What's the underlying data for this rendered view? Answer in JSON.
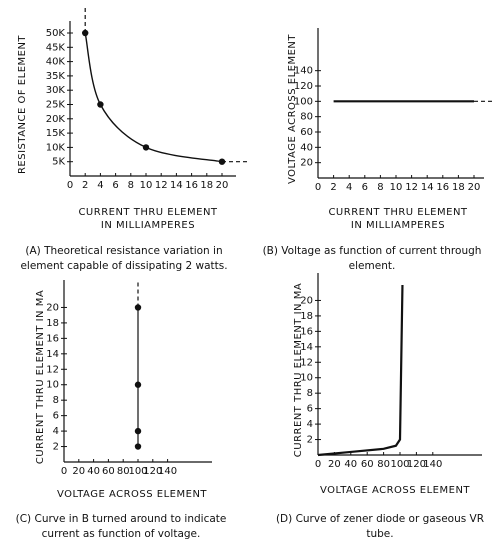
{
  "chart_data": [
    {
      "type": "line",
      "ylabel": "RESISTANCE OF ELEMENT",
      "xlabel": [
        "CURRENT THRU ELEMENT",
        "IN MILLIAMPERES"
      ],
      "caption": "(A) Theoretical resistance variation in element capable of dissipating 2 watts.",
      "x": [
        2,
        4,
        10,
        20
      ],
      "values": [
        50000,
        25000,
        10000,
        5000
      ],
      "color": "#111111",
      "markers": true,
      "smooth": true,
      "xlim": [
        0,
        20
      ],
      "ylim": [
        0,
        50000
      ],
      "xticks": [
        0,
        2,
        4,
        6,
        8,
        10,
        12,
        14,
        16,
        18,
        20
      ],
      "yticks": [
        {
          "value": 5000,
          "label": "5K"
        },
        {
          "value": 10000,
          "label": "10K"
        },
        {
          "value": 15000,
          "label": "15K"
        },
        {
          "value": 20000,
          "label": "20K"
        },
        {
          "value": 25000,
          "label": "25K"
        },
        {
          "value": 30000,
          "label": "30K"
        },
        {
          "value": 35000,
          "label": "35K"
        },
        {
          "value": 40000,
          "label": "40K"
        },
        {
          "value": 45000,
          "label": "45K"
        },
        {
          "value": 50000,
          "label": "50K"
        }
      ]
    },
    {
      "type": "line",
      "ylabel": "VOLTAGE ACROSS ELEMENT",
      "xlabel": [
        "CURRENT THRU ELEMENT",
        "IN MILLIAMPERES"
      ],
      "caption": "(B) Voltage as function of current through element.",
      "x": [
        2,
        20
      ],
      "values": [
        100,
        100
      ],
      "color": "#111111",
      "markers": false,
      "smooth": false,
      "xlim": [
        0,
        20
      ],
      "ylim": [
        0,
        180
      ],
      "xticks": [
        0,
        2,
        4,
        6,
        8,
        10,
        12,
        14,
        16,
        18,
        20
      ],
      "yticks": [
        20,
        40,
        60,
        80,
        100,
        120,
        140
      ]
    },
    {
      "type": "line",
      "ylabel": "CURRENT THRU ELEMENT IN MA",
      "xlabel": [
        "VOLTAGE ACROSS ELEMENT"
      ],
      "caption": "(C) Curve in B turned around to indicate current as function of voltage.",
      "x": [
        100,
        100,
        100,
        100
      ],
      "values": [
        2,
        4,
        10,
        20
      ],
      "color": "#111111",
      "markers": true,
      "smooth": false,
      "xlim": [
        0,
        200
      ],
      "ylim": [
        0,
        22
      ],
      "xticks": [
        0,
        20,
        40,
        60,
        80,
        100,
        120,
        140
      ],
      "yticks": [
        2,
        4,
        6,
        8,
        10,
        12,
        14,
        16,
        18,
        20
      ]
    },
    {
      "type": "line",
      "ylabel": "CURRENT THRU ELEMENT IN MA",
      "xlabel": [
        "VOLTAGE ACROSS ELEMENT"
      ],
      "caption": "(D) Curve of zener diode or gaseous VR tube.",
      "x": [
        0,
        40,
        80,
        95,
        100,
        103
      ],
      "values": [
        0,
        0.4,
        0.8,
        1.2,
        2,
        22
      ],
      "color": "#111111",
      "markers": false,
      "smooth": false,
      "xlim": [
        0,
        200
      ],
      "ylim": [
        0,
        22
      ],
      "xticks": [
        0,
        20,
        40,
        60,
        80,
        100,
        120,
        140
      ],
      "yticks": [
        2,
        4,
        6,
        8,
        10,
        12,
        14,
        16,
        18,
        20
      ]
    }
  ]
}
